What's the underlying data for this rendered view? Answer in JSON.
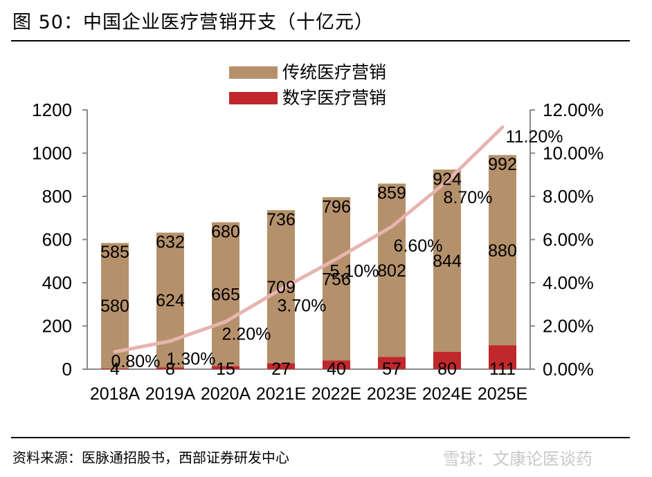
{
  "figure": {
    "title": "图 50：中国企业医疗营销开支（十亿元）",
    "source": "资料来源：医脉通招股书，西部证券研发中心",
    "watermark": "雪球：文康论医谈药"
  },
  "chart_data": {
    "type": "bar",
    "stacked": true,
    "categories": [
      "2018A",
      "2019A",
      "2020A",
      "2021E",
      "2022E",
      "2023E",
      "2024E",
      "2025E"
    ],
    "series": [
      {
        "name": "数字医疗营销",
        "values": [
          4,
          8,
          15,
          27,
          40,
          57,
          80,
          111
        ],
        "color": "#c0282c"
      },
      {
        "name": "传统医疗营销",
        "values": [
          580,
          624,
          665,
          709,
          756,
          802,
          844,
          880
        ],
        "color": "#b5916b"
      }
    ],
    "totals": [
      585,
      632,
      680,
      736,
      796,
      859,
      924,
      992
    ],
    "line": {
      "axis": "right",
      "values": [
        0.8,
        1.3,
        2.2,
        3.7,
        5.1,
        6.6,
        8.7,
        11.2
      ],
      "labels": [
        "0.80%",
        "1.30%",
        "2.20%",
        "3.70%",
        "5.10%",
        "6.60%",
        "8.70%",
        "11.20%"
      ],
      "color": "#e8b4b0"
    },
    "y_left": {
      "min": 0,
      "max": 1200,
      "ticks": [
        "0",
        "200",
        "400",
        "600",
        "800",
        "1000",
        "1200"
      ]
    },
    "y_right": {
      "min": 0,
      "max": 12,
      "ticks": [
        "0.00%",
        "2.00%",
        "4.00%",
        "6.00%",
        "8.00%",
        "10.00%",
        "12.00%"
      ]
    },
    "legend_position": "top-center",
    "grid": false
  }
}
